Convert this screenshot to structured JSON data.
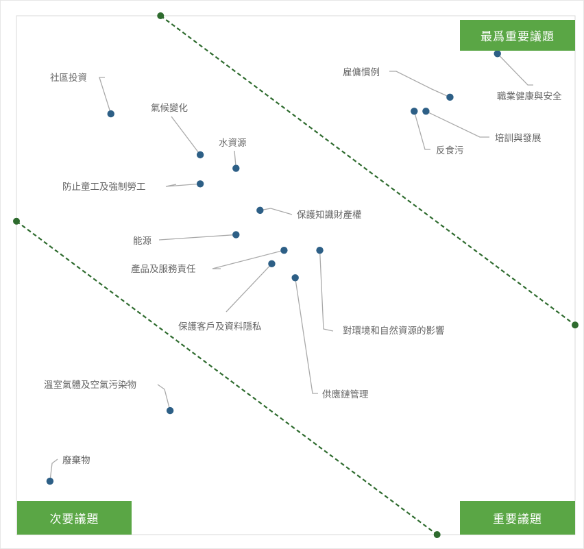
{
  "chart_data": {
    "type": "scatter",
    "title": "",
    "xlabel": "",
    "ylabel": "",
    "axes_visible": false,
    "xlim": [
      0,
      100
    ],
    "ylim": [
      0,
      100
    ],
    "zones": {
      "top_right": "最爲重要議題",
      "bottom_left": "次要議題",
      "bottom_right": "重要議題"
    },
    "threshold_lines": [
      {
        "from": [
          25.8,
          100
        ],
        "to": [
          100,
          40.4
        ],
        "color": "#2e6b2e"
      },
      {
        "from": [
          0,
          60.4
        ],
        "to": [
          75.3,
          0
        ],
        "color": "#2e6b2e"
      }
    ],
    "colors": {
      "point": "#2d5f86",
      "leader": "#a9a9a9",
      "zone": "#5aa645"
    },
    "points": [
      {
        "label": "社區投資",
        "x": 16.9,
        "y": 81.1
      },
      {
        "label": "氣候變化",
        "x": 32.9,
        "y": 73.2
      },
      {
        "label": "水資源",
        "x": 39.3,
        "y": 70.6
      },
      {
        "label": "防止童工及強制勞工",
        "x": 32.9,
        "y": 67.6
      },
      {
        "label": "保護知識財產權",
        "x": 43.6,
        "y": 62.5
      },
      {
        "label": "能源",
        "x": 39.3,
        "y": 57.8
      },
      {
        "label": "產品及服務責任",
        "x": 47.9,
        "y": 54.8
      },
      {
        "label": "保護客戶及資料隱私",
        "x": 45.7,
        "y": 52.2
      },
      {
        "label": "對環境和自然資源的影響",
        "x": 54.3,
        "y": 54.8
      },
      {
        "label": "供應鏈管理",
        "x": 49.9,
        "y": 49.5
      },
      {
        "label": "溫室氣體及空氣污染物",
        "x": 27.5,
        "y": 23.9
      },
      {
        "label": "廢棄物",
        "x": 6.0,
        "y": 10.3
      },
      {
        "label": "雇傭慣例",
        "x": 77.6,
        "y": 84.3
      },
      {
        "label": "職業健康與安全",
        "x": 86.1,
        "y": 92.7
      },
      {
        "label": "反食污",
        "x": 71.2,
        "y": 81.6
      },
      {
        "label": "培訓與發展",
        "x": 73.3,
        "y": 81.6
      }
    ]
  }
}
